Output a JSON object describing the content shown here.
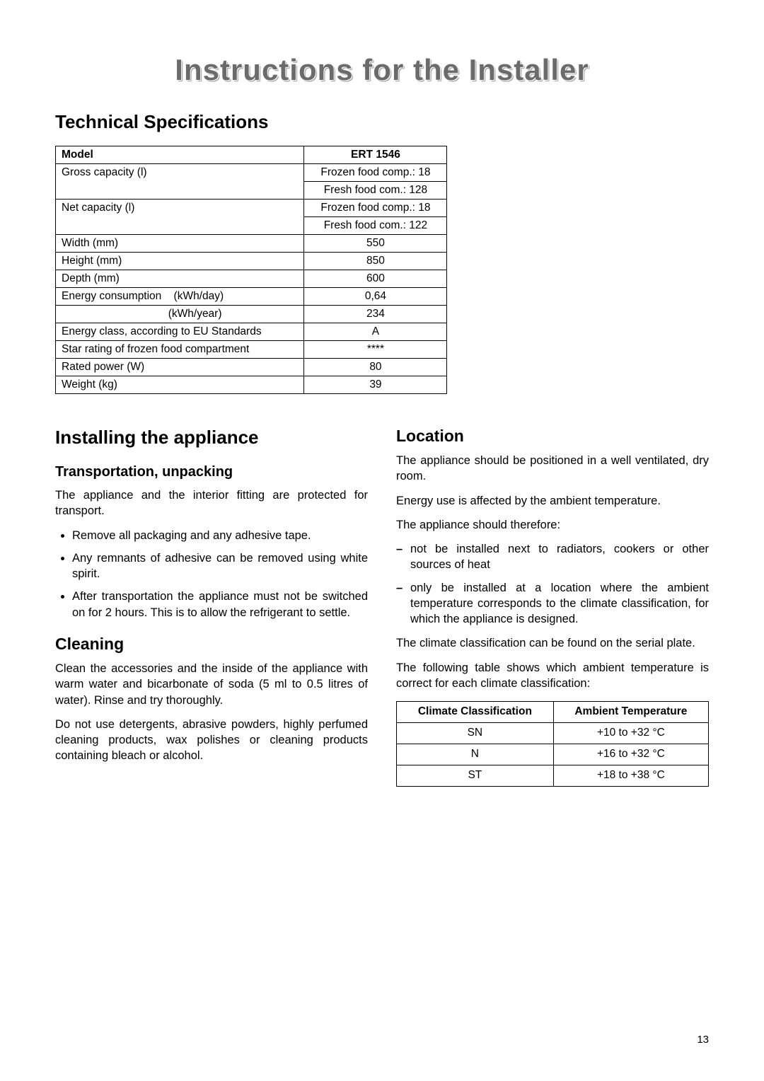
{
  "page_title": "Instructions for the Installer",
  "page_number": "13",
  "technical_specs": {
    "heading": "Technical Specifications",
    "header_model": "Model",
    "header_value": "ERT 1546",
    "rows": [
      {
        "label": "Gross capacity (l)",
        "values": [
          "Frozen food comp.: 18",
          "Fresh food com.: 128"
        ]
      },
      {
        "label": "Net capacity (l)",
        "values": [
          "Frozen food comp.: 18",
          "Fresh food com.: 122"
        ]
      },
      {
        "label": "Width (mm)",
        "values": [
          "550"
        ]
      },
      {
        "label": "Height (mm)",
        "values": [
          "850"
        ]
      },
      {
        "label": "Depth (mm)",
        "values": [
          "600"
        ]
      },
      {
        "label": "Energy consumption    (kWh/day)",
        "values": [
          "0,64"
        ]
      },
      {
        "label": "                                   (kWh/year)",
        "values": [
          "234"
        ],
        "continuation": true
      },
      {
        "label": "Energy class, according to EU Standards",
        "values": [
          "A"
        ]
      },
      {
        "label": "Star rating of frozen food compartment",
        "values": [
          "****"
        ]
      },
      {
        "label": "Rated power (W)",
        "values": [
          "80"
        ]
      },
      {
        "label": "Weight (kg)",
        "values": [
          "39"
        ]
      }
    ]
  },
  "installing": {
    "heading": "Installing the appliance",
    "transport": {
      "heading": "Transportation, unpacking",
      "intro": "The appliance and the interior fitting are protected for transport.",
      "bullets": [
        "Remove all packaging and any adhesive tape.",
        "Any remnants of adhesive can be removed using white spirit.",
        "After transportation the appliance must not be switched on for 2 hours. This is to allow the refrigerant to settle."
      ]
    },
    "cleaning": {
      "heading": "Cleaning",
      "paras": [
        "Clean the accessories and the inside of the appliance with warm water and bicarbonate of soda (5 ml to 0.5 litres of water). Rinse and try thoroughly.",
        "Do not use detergents, abrasive powders, highly perfumed cleaning products, wax polishes or cleaning products containing bleach or alcohol."
      ]
    }
  },
  "location": {
    "heading": "Location",
    "paras_before": [
      "The appliance should be positioned in a well ventilated, dry room.",
      "Energy use is affected by the ambient temperature.",
      "The appliance should therefore:"
    ],
    "dashes": [
      "not be installed next to radiators, cookers or other sources of heat",
      "only be installed at a location where the ambient temperature corresponds to the climate classification, for which the appliance is designed."
    ],
    "paras_after": [
      "The climate classification can be found on the serial plate.",
      "The following table shows which ambient temperature is correct for each climate classification:"
    ],
    "climate_table": {
      "headers": [
        "Climate Classification",
        "Ambient Temperature"
      ],
      "rows": [
        [
          "SN",
          "+10 to +32 °C"
        ],
        [
          "N",
          "+16 to +32 °C"
        ],
        [
          "ST",
          "+18 to +38 °C"
        ]
      ]
    }
  }
}
